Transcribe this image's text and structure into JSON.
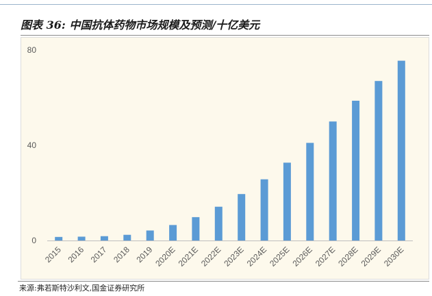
{
  "figure": {
    "title": "图表 36:  中国抗体药物市场规模及预测/十亿美元",
    "source": "来源:弗若斯特沙利文,国金证券研究所"
  },
  "chart_data": {
    "type": "bar",
    "title": "",
    "xlabel": "",
    "ylabel": "",
    "categories": [
      "2015",
      "2016",
      "2017",
      "2018",
      "2019",
      "2020E",
      "2021E",
      "2022E",
      "2023E",
      "2024E",
      "2025E",
      "2026E",
      "2027E",
      "2028E",
      "2029E",
      "2030E"
    ],
    "values": [
      1.5,
      1.6,
      1.8,
      2.4,
      4.2,
      6.5,
      9.8,
      14.2,
      19.5,
      25.7,
      32.7,
      41.0,
      50.0,
      58.7,
      67.0,
      75.5
    ],
    "ylim": [
      0,
      80
    ],
    "yticks": [
      0,
      40,
      80
    ],
    "grid": false,
    "legend": "none",
    "colors": {
      "bar": "#5b9bd5",
      "axis": "#bfbfbf",
      "tick_label": "#595959",
      "background": "#fdf9ec"
    }
  }
}
